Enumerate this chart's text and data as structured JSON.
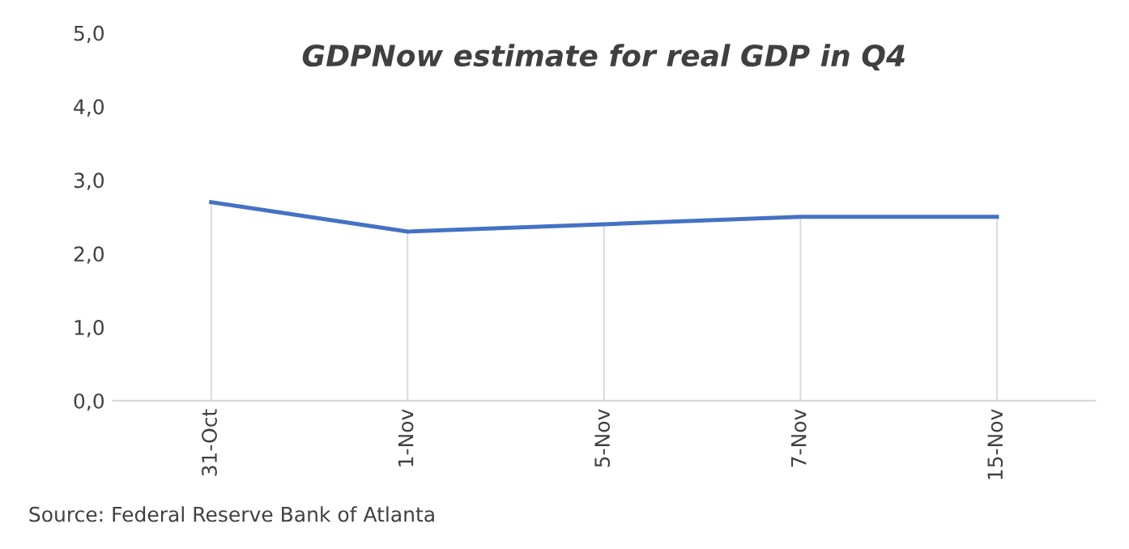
{
  "chart_data": {
    "type": "line",
    "title": "GDPNow estimate for real GDP in Q4",
    "categories": [
      "31-Oct",
      "1-Nov",
      "5-Nov",
      "7-Nov",
      "15-Nov"
    ],
    "series": [
      {
        "type": "bar",
        "color": "#d9d9d9",
        "values": [
          2.7,
          2.3,
          2.4,
          2.5,
          2.5
        ]
      },
      {
        "color": "#4472c4",
        "values": [
          2.7,
          2.3,
          2.4,
          2.5,
          2.5
        ]
      }
    ],
    "ylim": [
      0,
      5
    ],
    "yticks": [
      {
        "value": 0,
        "label": "0,0"
      },
      {
        "value": 1,
        "label": "1,0"
      },
      {
        "value": 2,
        "label": "2,0"
      },
      {
        "value": 3,
        "label": "3,0"
      },
      {
        "value": 4,
        "label": "4,0"
      },
      {
        "value": 5,
        "label": "5,0"
      }
    ],
    "marker": "none",
    "line_style": "solid",
    "annotations": [
      "Source: Federal Reserve Bank of Atlanta"
    ]
  }
}
